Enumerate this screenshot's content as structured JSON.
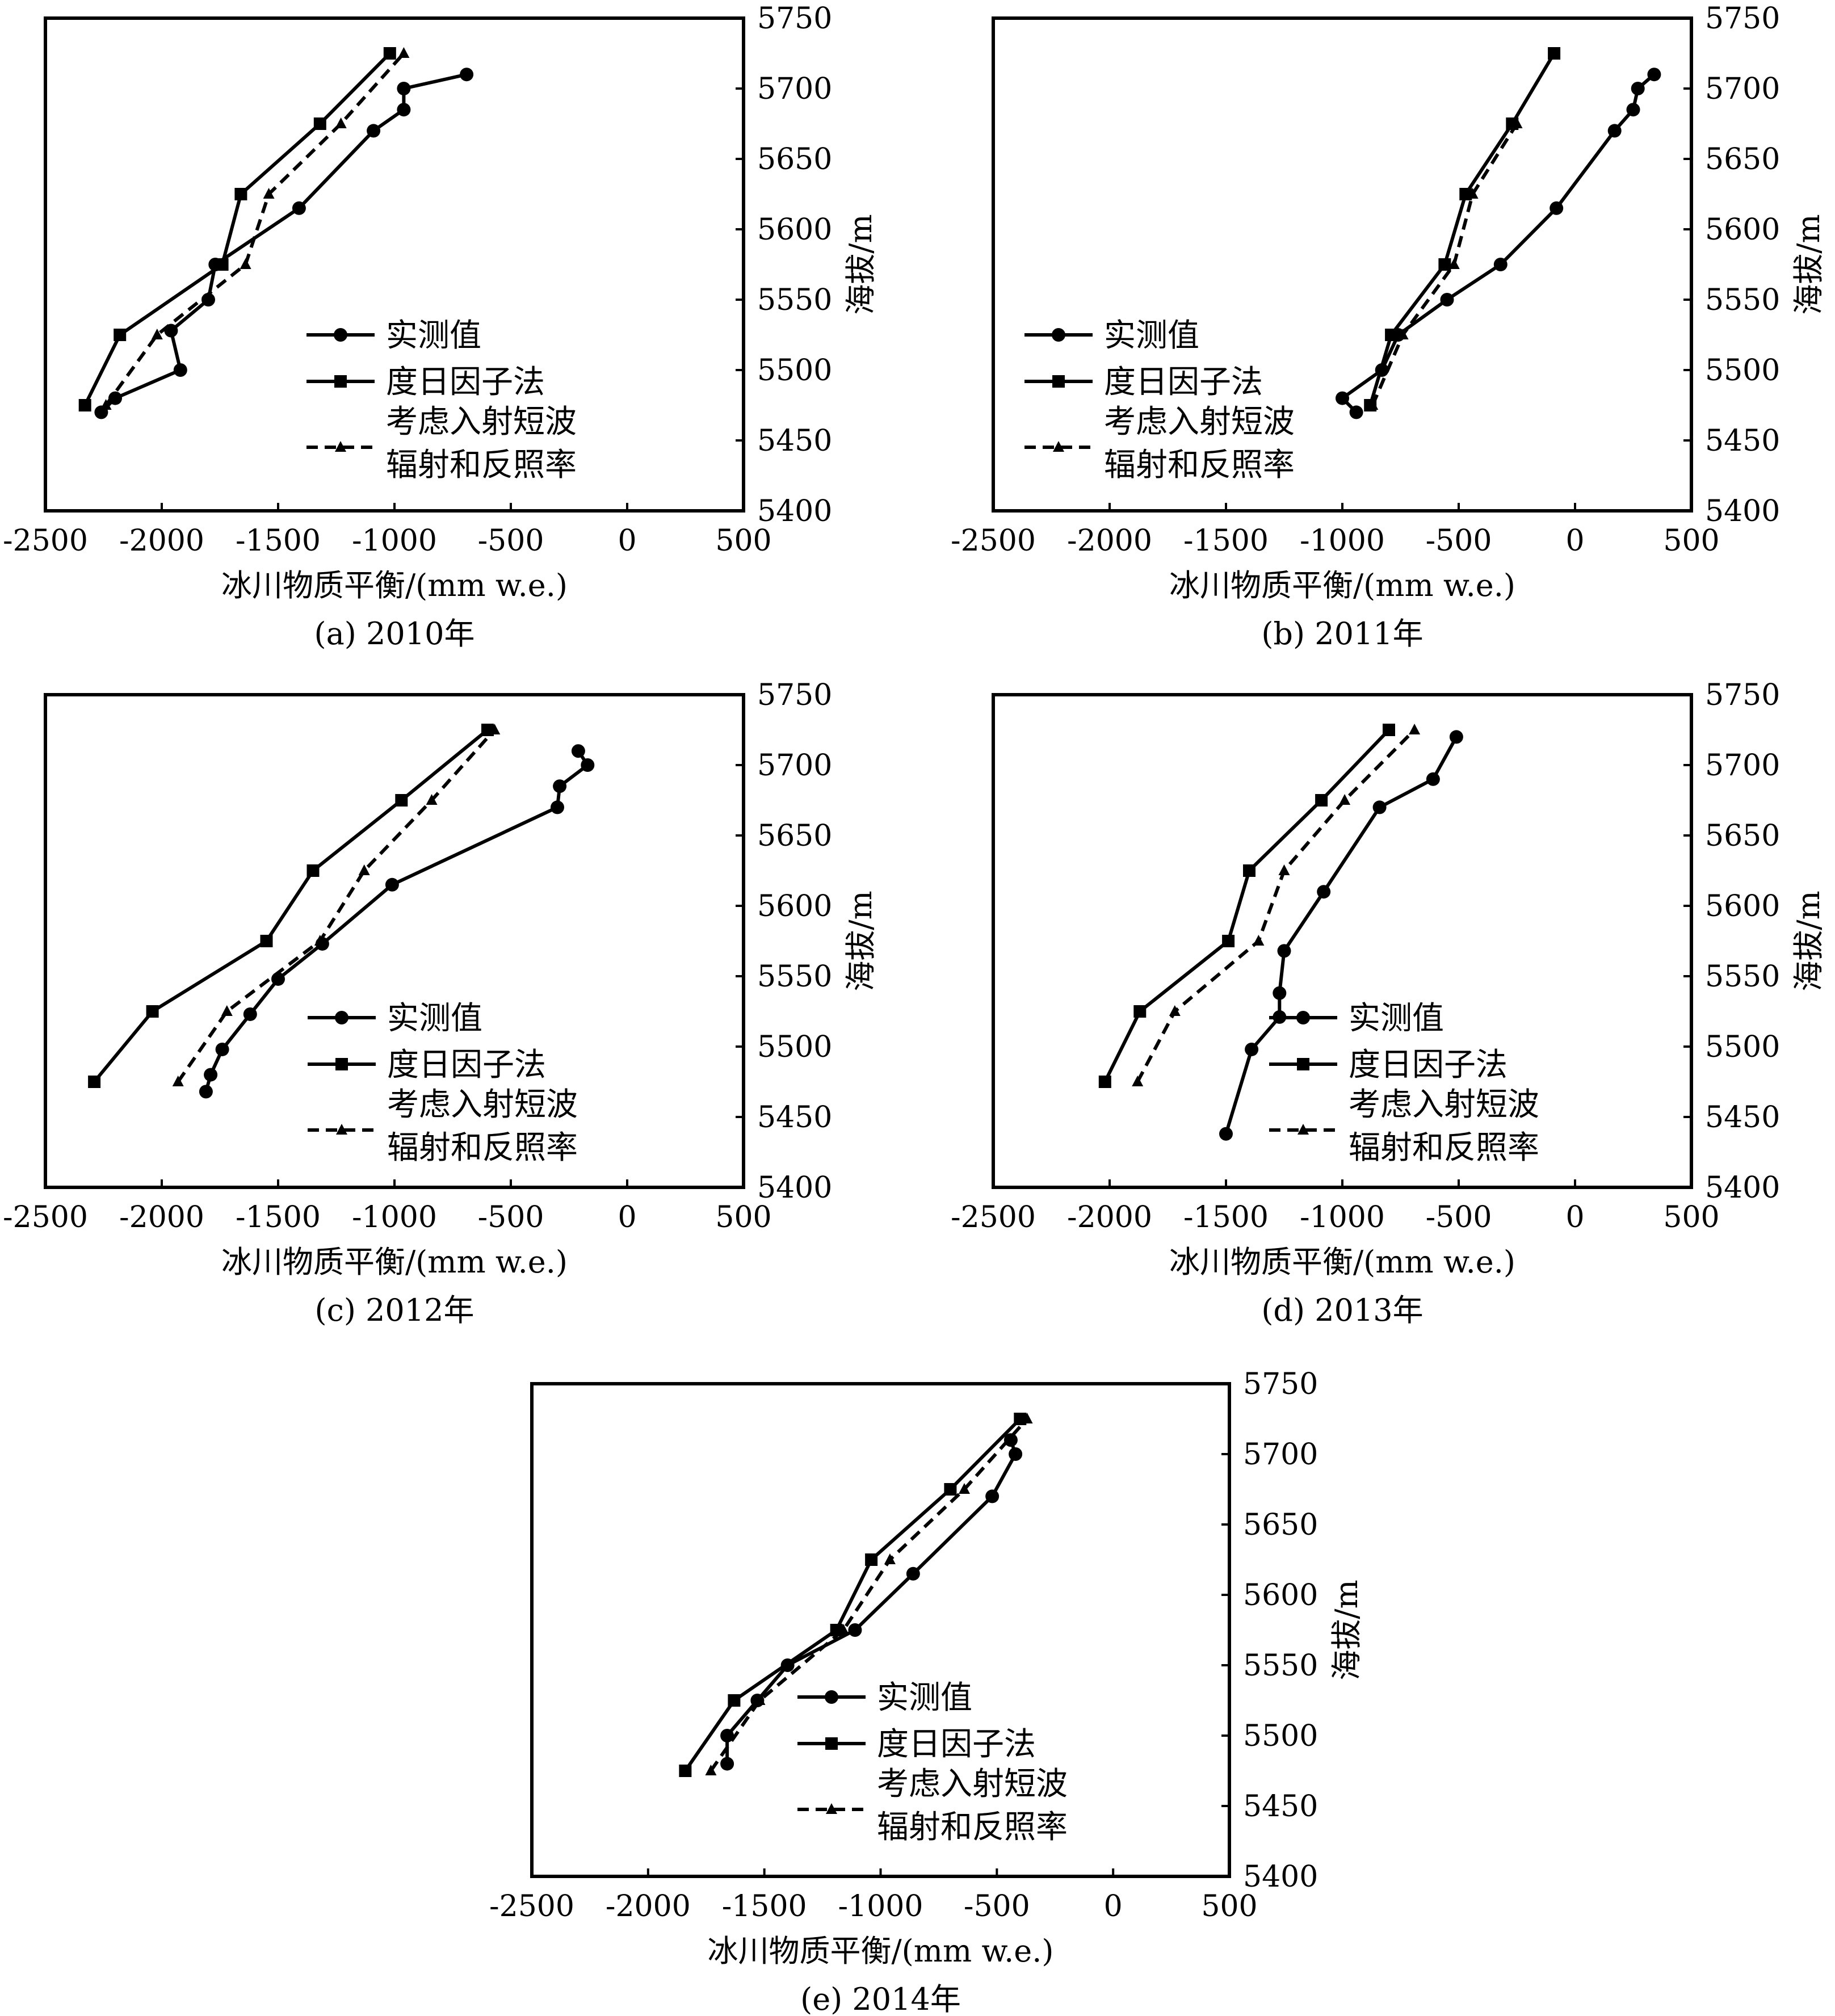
{
  "chart_data": [
    {
      "type": "line",
      "caption": "(a) 2010年",
      "xlabel": "冰川物质平衡/(mm w.e.)",
      "ylabel": "海拔/m",
      "xlim": [
        -2500,
        500
      ],
      "ylim": [
        5400,
        5750
      ],
      "xticks": [
        "-2500",
        "-2000",
        "-1500",
        "-1000",
        "-500",
        "0",
        "500"
      ],
      "yticks": [
        "5400",
        "5450",
        "5500",
        "5550",
        "5600",
        "5650",
        "5700",
        "5750"
      ],
      "legend": [
        "实测值",
        "度日因子法",
        "考虑入射短波辐射和反照率"
      ],
      "legend_lines": [
        "实测值",
        "度日因子法",
        "考虑入射短波",
        "辐射和反照率"
      ],
      "series": [
        {
          "name": "实测值",
          "marker": "circle",
          "dash": false,
          "points": [
            [
              -2260,
              5470
            ],
            [
              -2200,
              5480
            ],
            [
              -1920,
              5500
            ],
            [
              -1960,
              5528
            ],
            [
              -1800,
              5550
            ],
            [
              -1770,
              5575
            ],
            [
              -1410,
              5615
            ],
            [
              -1090,
              5670
            ],
            [
              -960,
              5685
            ],
            [
              -960,
              5700
            ],
            [
              -690,
              5710
            ]
          ]
        },
        {
          "name": "度日因子法",
          "marker": "square",
          "dash": false,
          "points": [
            [
              -2330,
              5475
            ],
            [
              -2180,
              5525
            ],
            [
              -1740,
              5575
            ],
            [
              -1660,
              5625
            ],
            [
              -1320,
              5675
            ],
            [
              -1020,
              5725
            ]
          ]
        },
        {
          "name": "考虑入射短波辐射和反照率",
          "marker": "triangle",
          "dash": true,
          "points": [
            [
              -2240,
              5475
            ],
            [
              -2020,
              5525
            ],
            [
              -1640,
              5575
            ],
            [
              -1540,
              5625
            ],
            [
              -1230,
              5675
            ],
            [
              -960,
              5725
            ]
          ]
        }
      ]
    },
    {
      "type": "line",
      "caption": "(b) 2011年",
      "xlabel": "冰川物质平衡/(mm w.e.)",
      "ylabel": "海拔/m",
      "xlim": [
        -2500,
        500
      ],
      "ylim": [
        5400,
        5750
      ],
      "xticks": [
        "-2500",
        "-2000",
        "-1500",
        "-1000",
        "-500",
        "0",
        "500"
      ],
      "yticks": [
        "5400",
        "5450",
        "5500",
        "5550",
        "5600",
        "5650",
        "5700",
        "5750"
      ],
      "legend": [
        "实测值",
        "度日因子法",
        "考虑入射短波辐射和反照率"
      ],
      "legend_lines": [
        "实测值",
        "度日因子法",
        "考虑入射短波",
        "辐射和反照率"
      ],
      "series": [
        {
          "name": "实测值",
          "marker": "circle",
          "dash": false,
          "points": [
            [
              -940,
              5470
            ],
            [
              -1000,
              5480
            ],
            [
              -830,
              5500
            ],
            [
              -760,
              5525
            ],
            [
              -550,
              5550
            ],
            [
              -320,
              5575
            ],
            [
              -80,
              5615
            ],
            [
              170,
              5670
            ],
            [
              250,
              5685
            ],
            [
              270,
              5700
            ],
            [
              340,
              5710
            ]
          ]
        },
        {
          "name": "度日因子法",
          "marker": "square",
          "dash": false,
          "points": [
            [
              -880,
              5475
            ],
            [
              -790,
              5525
            ],
            [
              -560,
              5575
            ],
            [
              -470,
              5625
            ],
            [
              -270,
              5675
            ],
            [
              -90,
              5725
            ]
          ]
        },
        {
          "name": "考虑入射短波辐射和反照率",
          "marker": "triangle",
          "dash": true,
          "points": [
            [
              -870,
              5475
            ],
            [
              -740,
              5525
            ],
            [
              -520,
              5575
            ],
            [
              -440,
              5625
            ],
            [
              -250,
              5675
            ]
          ]
        }
      ]
    },
    {
      "type": "line",
      "caption": "(c) 2012年",
      "xlabel": "冰川物质平衡/(mm w.e.)",
      "ylabel": "海拔/m",
      "xlim": [
        -2500,
        500
      ],
      "ylim": [
        5400,
        5750
      ],
      "xticks": [
        "-2500",
        "-2000",
        "-1500",
        "-1000",
        "-500",
        "0",
        "500"
      ],
      "yticks": [
        "5400",
        "5450",
        "5500",
        "5550",
        "5600",
        "5650",
        "5700",
        "5750"
      ],
      "legend": [
        "实测值",
        "度日因子法",
        "考虑入射短波辐射和反照率"
      ],
      "legend_lines": [
        "实测值",
        "度日因子法",
        "考虑入射短波",
        "辐射和反照率"
      ],
      "series": [
        {
          "name": "实测值",
          "marker": "circle",
          "dash": false,
          "points": [
            [
              -1810,
              5468
            ],
            [
              -1790,
              5480
            ],
            [
              -1740,
              5498
            ],
            [
              -1620,
              5523
            ],
            [
              -1500,
              5548
            ],
            [
              -1310,
              5573
            ],
            [
              -1010,
              5615
            ],
            [
              -300,
              5670
            ],
            [
              -290,
              5685
            ],
            [
              -170,
              5700
            ],
            [
              -210,
              5710
            ]
          ]
        },
        {
          "name": "度日因子法",
          "marker": "square",
          "dash": false,
          "points": [
            [
              -2290,
              5475
            ],
            [
              -2040,
              5525
            ],
            [
              -1550,
              5575
            ],
            [
              -1350,
              5625
            ],
            [
              -970,
              5675
            ],
            [
              -600,
              5725
            ]
          ]
        },
        {
          "name": "考虑入射短波辐射和反照率",
          "marker": "triangle",
          "dash": true,
          "points": [
            [
              -1930,
              5475
            ],
            [
              -1720,
              5525
            ],
            [
              -1320,
              5575
            ],
            [
              -1130,
              5625
            ],
            [
              -840,
              5675
            ],
            [
              -570,
              5725
            ]
          ]
        }
      ]
    },
    {
      "type": "line",
      "caption": "(d) 2013年",
      "xlabel": "冰川物质平衡/(mm w.e.)",
      "ylabel": "海拔/m",
      "xlim": [
        -2500,
        500
      ],
      "ylim": [
        5400,
        5750
      ],
      "xticks": [
        "-2500",
        "-2000",
        "-1500",
        "-1000",
        "-500",
        "0",
        "500"
      ],
      "yticks": [
        "5400",
        "5450",
        "5500",
        "5550",
        "5600",
        "5650",
        "5700",
        "5750"
      ],
      "legend": [
        "实测值",
        "度日因子法",
        "考虑入射短波辐射和反照率"
      ],
      "legend_lines": [
        "实测值",
        "度日因子法",
        "考虑入射短波",
        "辐射和反照率"
      ],
      "series": [
        {
          "name": "实测值",
          "marker": "circle",
          "dash": false,
          "points": [
            [
              -1500,
              5438
            ],
            [
              -1390,
              5498
            ],
            [
              -1270,
              5521
            ],
            [
              -1270,
              5538
            ],
            [
              -1250,
              5568
            ],
            [
              -1080,
              5610
            ],
            [
              -840,
              5670
            ],
            [
              -610,
              5690
            ],
            [
              -510,
              5720
            ]
          ]
        },
        {
          "name": "度日因子法",
          "marker": "square",
          "dash": false,
          "points": [
            [
              -2020,
              5475
            ],
            [
              -1870,
              5525
            ],
            [
              -1490,
              5575
            ],
            [
              -1400,
              5625
            ],
            [
              -1090,
              5675
            ],
            [
              -800,
              5725
            ]
          ]
        },
        {
          "name": "考虑入射短波辐射和反照率",
          "marker": "triangle",
          "dash": true,
          "points": [
            [
              -1880,
              5475
            ],
            [
              -1720,
              5525
            ],
            [
              -1360,
              5575
            ],
            [
              -1250,
              5625
            ],
            [
              -990,
              5675
            ],
            [
              -690,
              5725
            ]
          ]
        }
      ]
    },
    {
      "type": "line",
      "caption": "(e) 2014年",
      "xlabel": "冰川物质平衡/(mm w.e.)",
      "ylabel": "海拔/m",
      "xlim": [
        -2500,
        500
      ],
      "ylim": [
        5400,
        5750
      ],
      "xticks": [
        "-2500",
        "-2000",
        "-1500",
        "-1000",
        "-500",
        "0",
        "500"
      ],
      "yticks": [
        "5400",
        "5450",
        "5500",
        "5550",
        "5600",
        "5650",
        "5700",
        "5750"
      ],
      "legend": [
        "实测值",
        "度日因子法",
        "考虑入射短波辐射和反照率"
      ],
      "legend_lines": [
        "实测值",
        "度日因子法",
        "考虑入射短波",
        "辐射和反照率"
      ],
      "series": [
        {
          "name": "实测值",
          "marker": "circle",
          "dash": false,
          "points": [
            [
              -1660,
              5480
            ],
            [
              -1660,
              5500
            ],
            [
              -1530,
              5525
            ],
            [
              -1400,
              5550
            ],
            [
              -1110,
              5575
            ],
            [
              -860,
              5615
            ],
            [
              -520,
              5670
            ],
            [
              -420,
              5700
            ],
            [
              -440,
              5710
            ]
          ]
        },
        {
          "name": "度日因子法",
          "marker": "square",
          "dash": false,
          "points": [
            [
              -1840,
              5475
            ],
            [
              -1630,
              5525
            ],
            [
              -1190,
              5575
            ],
            [
              -1040,
              5625
            ],
            [
              -700,
              5675
            ],
            [
              -400,
              5725
            ]
          ]
        },
        {
          "name": "考虑入射短波辐射和反照率",
          "marker": "triangle",
          "dash": true,
          "points": [
            [
              -1730,
              5475
            ],
            [
              -1520,
              5525
            ],
            [
              -1160,
              5575
            ],
            [
              -960,
              5625
            ],
            [
              -640,
              5675
            ],
            [
              -370,
              5725
            ]
          ]
        }
      ]
    }
  ]
}
